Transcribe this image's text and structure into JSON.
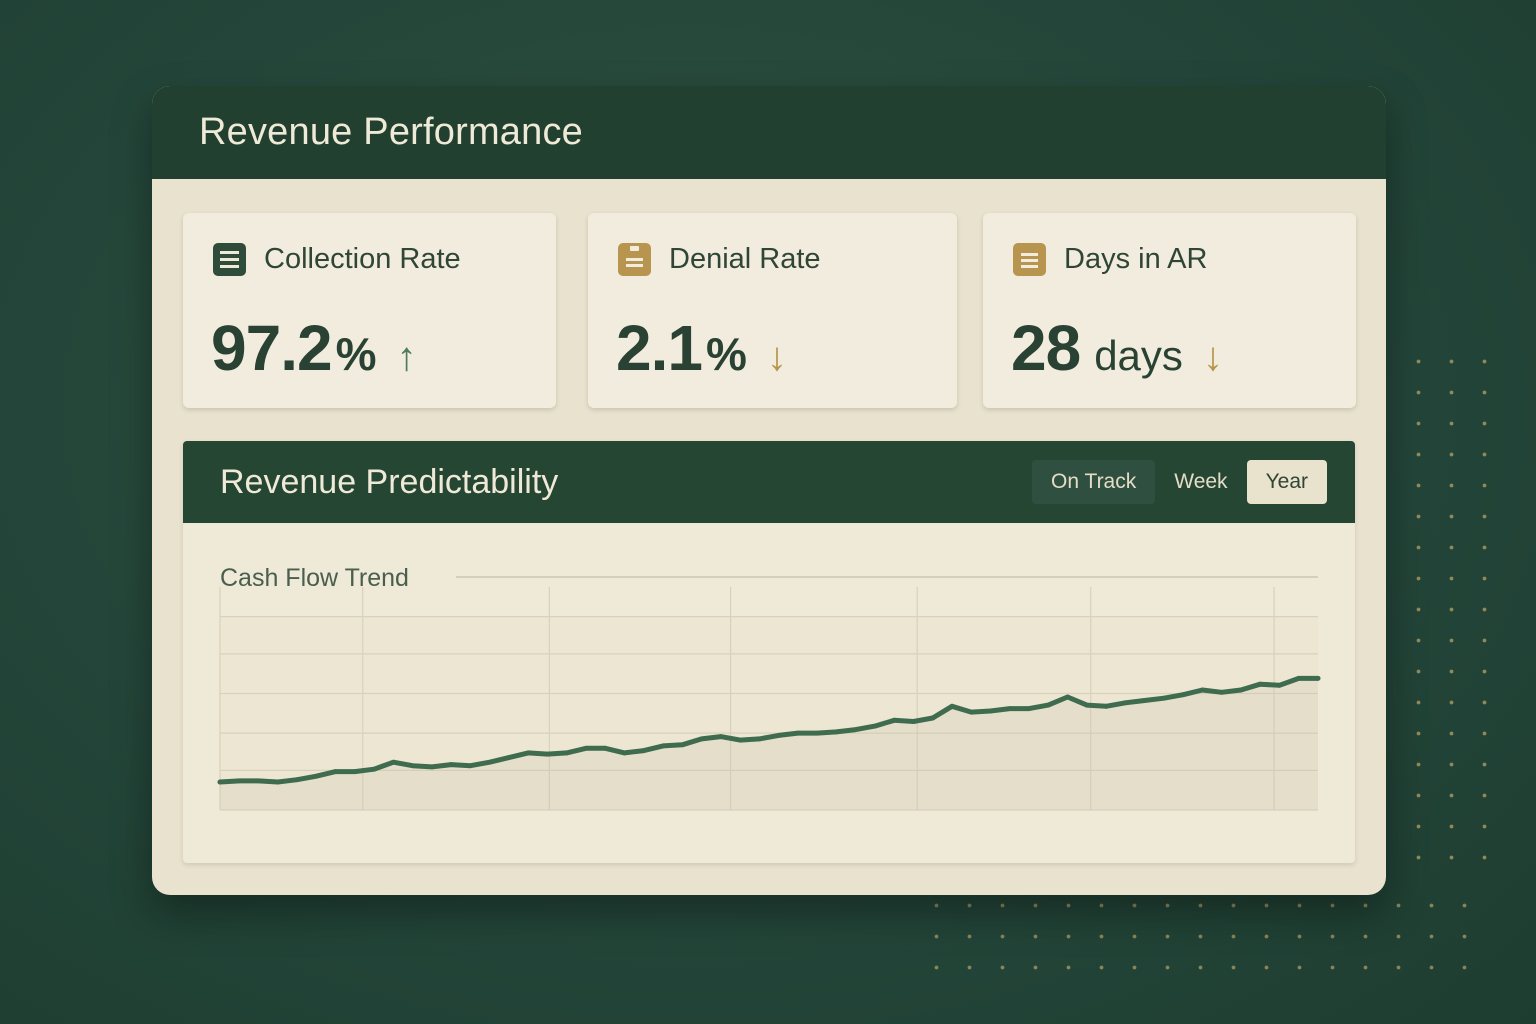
{
  "window": {
    "title": "Revenue Performance"
  },
  "kpis": [
    {
      "label": "Collection Rate",
      "value": "97.2",
      "unit": "%",
      "arrow": "↑",
      "icon": "list-icon",
      "trend": "up",
      "arrow_color": "#4f7a5c"
    },
    {
      "label": "Denial Rate",
      "value": "2.1",
      "unit": "%",
      "arrow": "↓",
      "icon": "clipboard-icon",
      "trend": "down",
      "arrow_color": "#b8954e"
    },
    {
      "label": "Days in AR",
      "value": "28",
      "unit": "days",
      "arrow": "↓",
      "icon": "document-icon",
      "trend": "down",
      "arrow_color": "#b8954e"
    }
  ],
  "chart_panel": {
    "title": "Revenue Predictability",
    "filters": [
      {
        "label": "On Track",
        "state": "dark"
      },
      {
        "label": "Week",
        "state": "plain"
      },
      {
        "label": "Year",
        "state": "active"
      }
    ]
  },
  "chart_data": {
    "type": "line",
    "title": "Cash Flow Trend",
    "xlabel": "",
    "ylabel": "",
    "grid": true,
    "ylim": [
      0,
      100
    ],
    "x": [
      0,
      1,
      2,
      3,
      4,
      5,
      6,
      7,
      8,
      9,
      10,
      11,
      12,
      13,
      14,
      15,
      16,
      17,
      18,
      19,
      20,
      21,
      22,
      23,
      24,
      25,
      26,
      27,
      28,
      29,
      30,
      31,
      32,
      33,
      34,
      35,
      36,
      37,
      38,
      39,
      40,
      41,
      42,
      43,
      44,
      45,
      46,
      47,
      48,
      49,
      50,
      51,
      52,
      53,
      54,
      55,
      56,
      57
    ],
    "series": [
      {
        "color": "#3f6b4f",
        "values": [
          12,
          12.5,
          12.5,
          12,
          13,
          14.5,
          16.5,
          16.5,
          17.5,
          20.5,
          19,
          18.5,
          19.5,
          19,
          20.5,
          22.5,
          24.5,
          24,
          24.5,
          26.5,
          26.5,
          24.5,
          25.5,
          27.5,
          28,
          30.5,
          31.5,
          30,
          30.5,
          32,
          33,
          33,
          33.5,
          34.5,
          36,
          38.5,
          38,
          39.5,
          44.5,
          42,
          42.5,
          43.5,
          43.5,
          45,
          48.5,
          45,
          44.5,
          46,
          47,
          48,
          49.5,
          51.5,
          50.5,
          51.5,
          54,
          53.5,
          56.5,
          56.5
        ]
      }
    ]
  }
}
